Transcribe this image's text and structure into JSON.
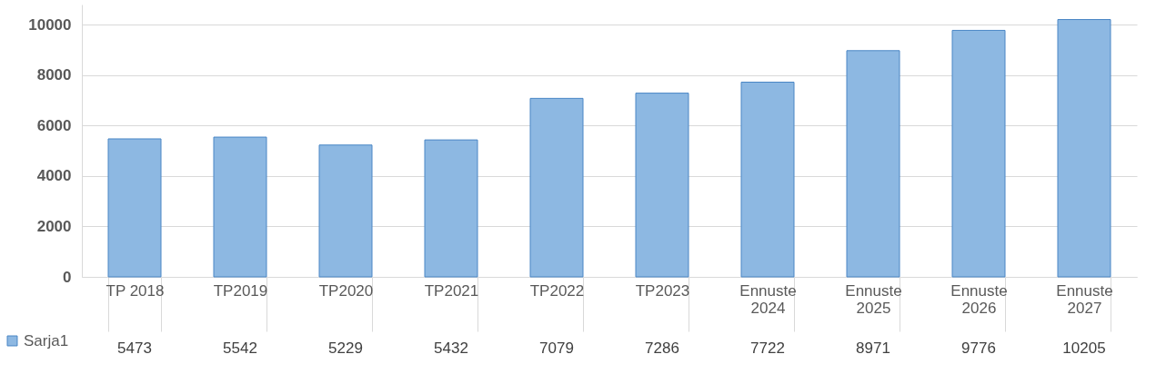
{
  "chart_data": {
    "type": "bar",
    "categories": [
      "TP 2018",
      "TP2019",
      "TP2020",
      "TP2021",
      "TP2022",
      "TP2023",
      "Ennuste 2024",
      "Ennuste 2025",
      "Ennuste 2026",
      "Ennuste 2027"
    ],
    "series": [
      {
        "name": "Sarja1",
        "color": "#8db8e2",
        "values": [
          5473,
          5542,
          5229,
          5432,
          7079,
          7286,
          7722,
          8971,
          9776,
          10205
        ]
      }
    ],
    "ylim": [
      0,
      10800
    ],
    "yticks": [
      0,
      2000,
      4000,
      6000,
      8000,
      10000
    ],
    "grid": "y",
    "legend": "bottom left",
    "data_labels": true
  }
}
